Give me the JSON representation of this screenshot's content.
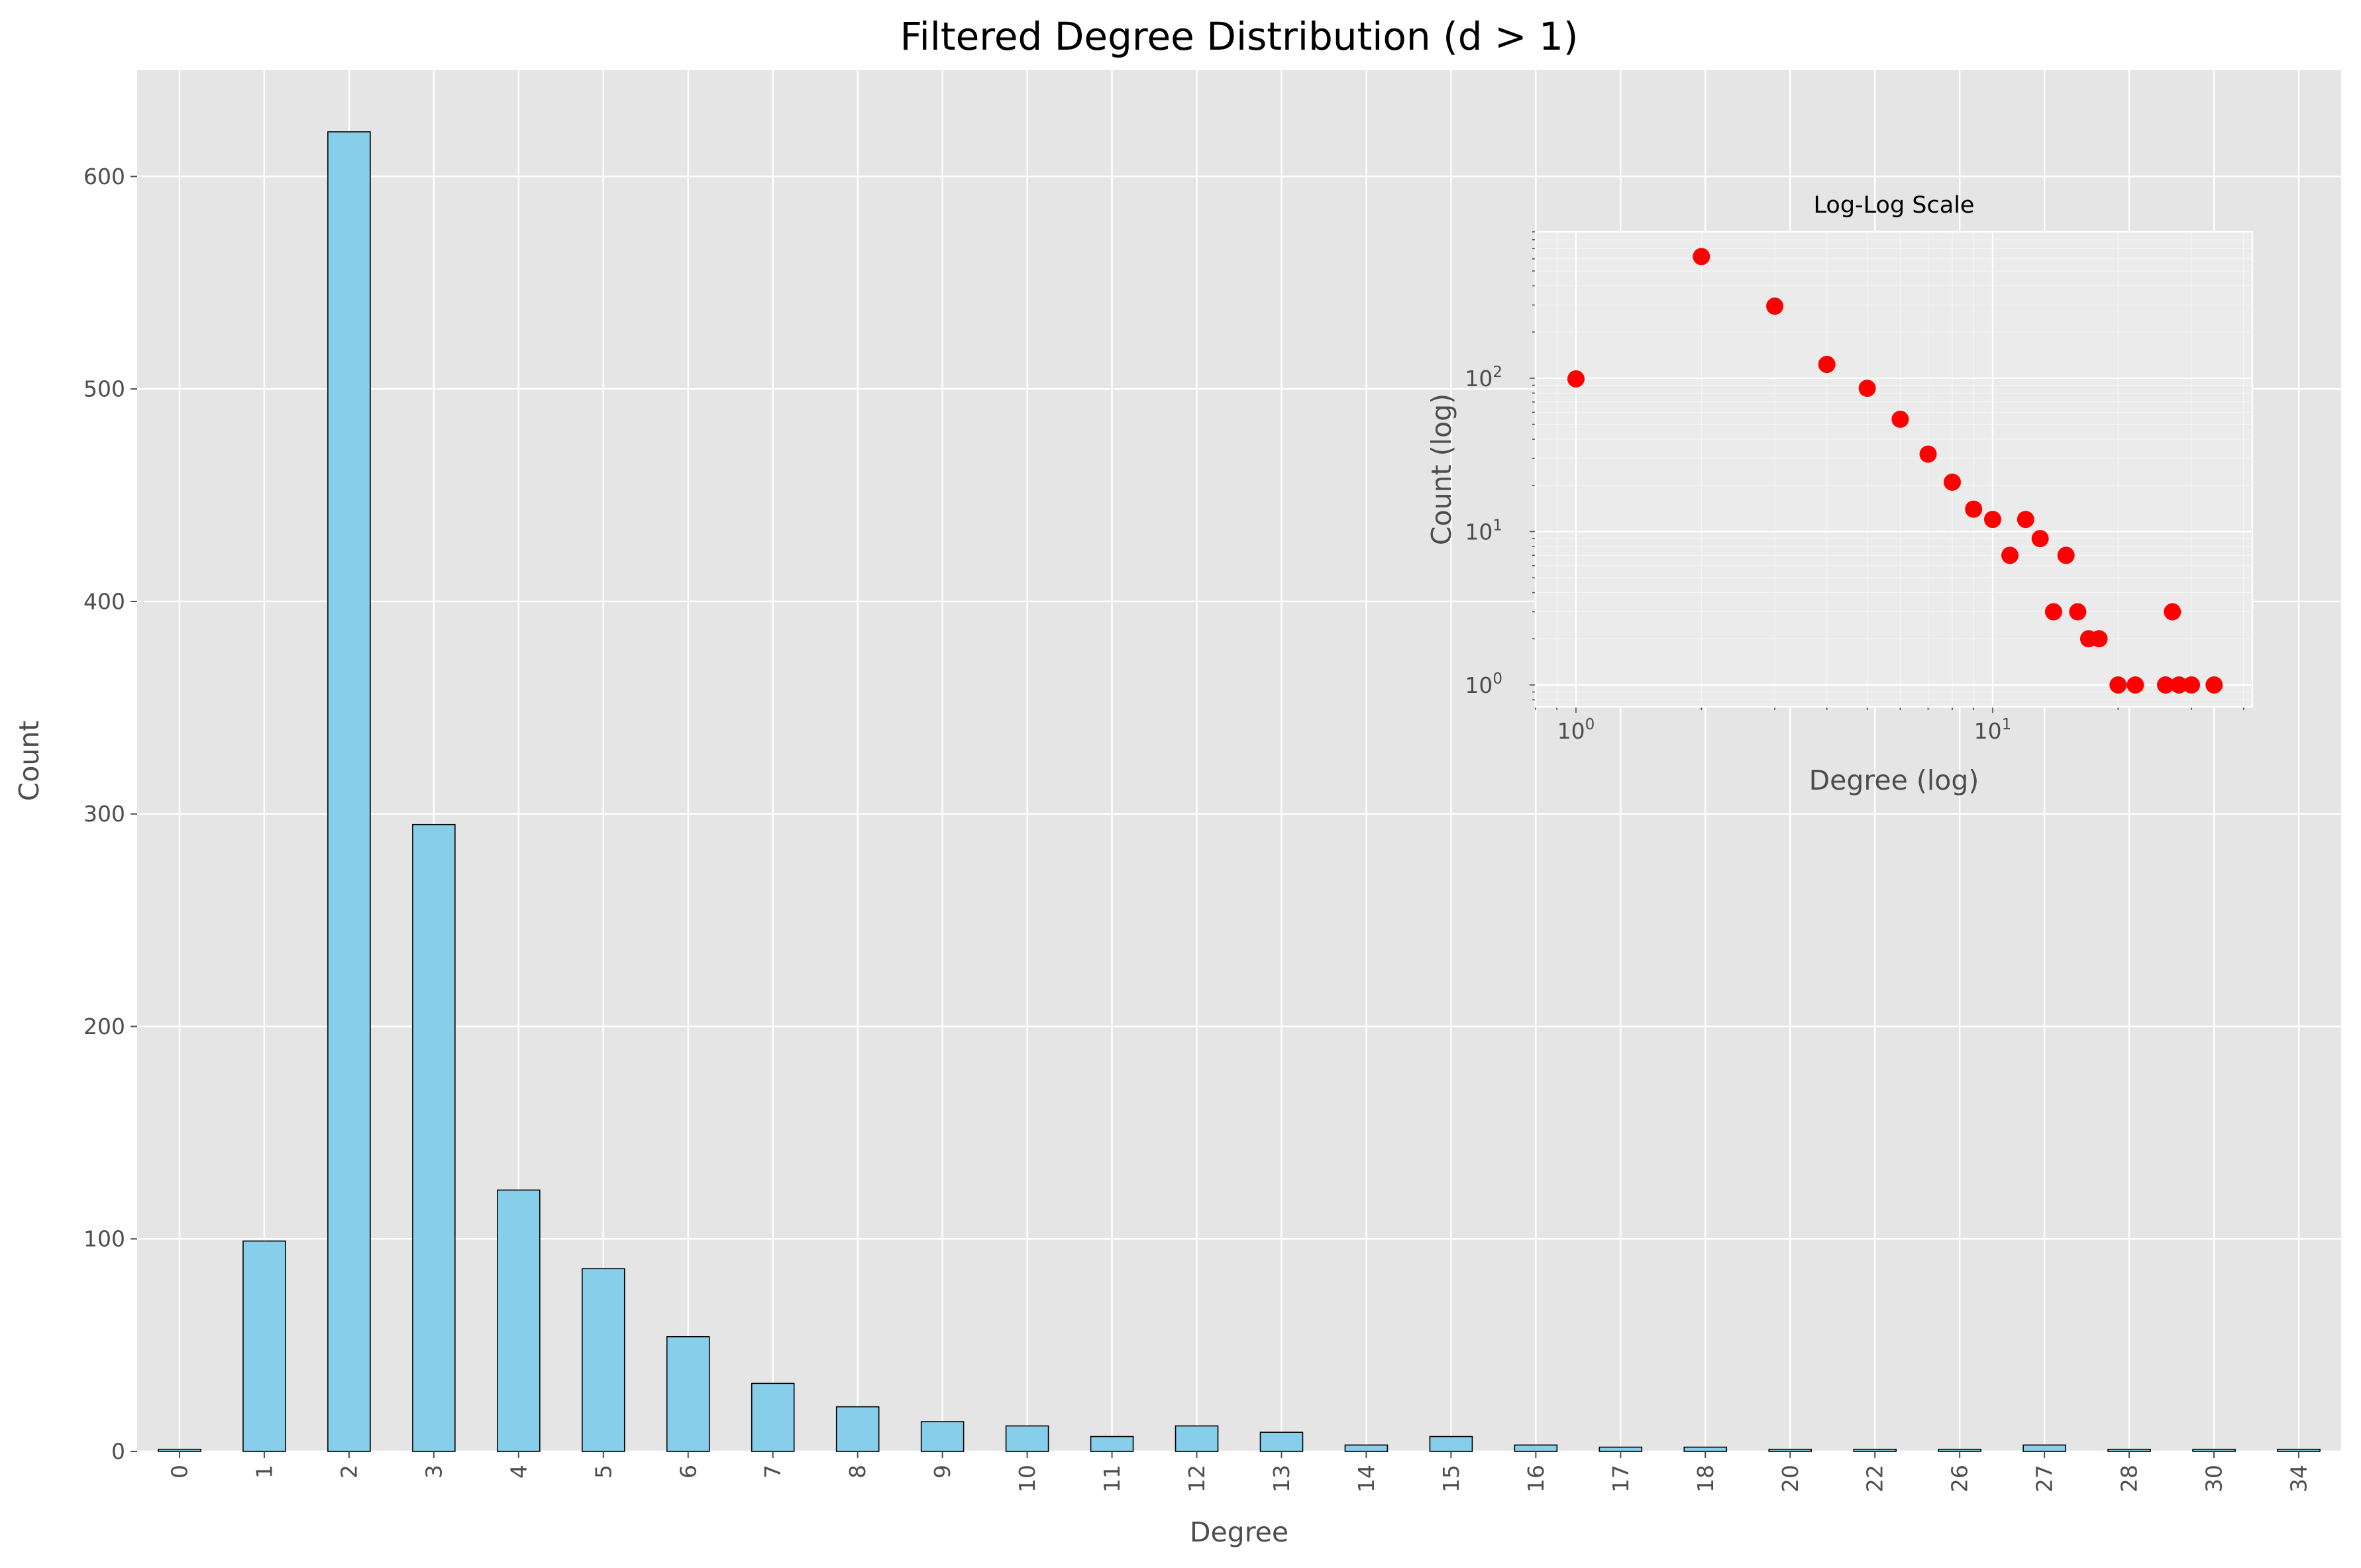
{
  "chart_data": [
    {
      "type": "bar",
      "title": "Filtered Degree Distribution (d > 1)",
      "xlabel": "Degree",
      "ylabel": "Count",
      "categories": [
        "0",
        "1",
        "2",
        "3",
        "4",
        "5",
        "6",
        "7",
        "8",
        "9",
        "10",
        "11",
        "12",
        "13",
        "14",
        "15",
        "16",
        "17",
        "18",
        "20",
        "22",
        "26",
        "27",
        "28",
        "30",
        "34"
      ],
      "values": [
        1,
        99,
        621,
        295,
        123,
        86,
        54,
        32,
        21,
        14,
        12,
        7,
        12,
        9,
        3,
        7,
        3,
        2,
        2,
        1,
        1,
        1,
        3,
        1,
        1,
        1
      ],
      "ylim": [
        0,
        650
      ],
      "yticks": [
        0,
        100,
        200,
        300,
        400,
        500,
        600
      ],
      "ytick_labels": [
        "0",
        "100",
        "200",
        "300",
        "400",
        "500",
        "600"
      ],
      "grid": true,
      "colors": {
        "bar": "#87ceeb",
        "edge": "#000000",
        "background": "#e5e5e5",
        "grid": "#ffffff"
      }
    },
    {
      "type": "scatter",
      "title": "Log-Log Scale",
      "xlabel": "Degree (log)",
      "ylabel": "Count (log)",
      "xscale": "log",
      "yscale": "log",
      "x": [
        1,
        2,
        3,
        4,
        5,
        6,
        7,
        8,
        9,
        10,
        11,
        12,
        13,
        14,
        15,
        16,
        17,
        18,
        20,
        22,
        26,
        27,
        28,
        30,
        34
      ],
      "y": [
        99,
        621,
        295,
        123,
        86,
        54,
        32,
        21,
        14,
        12,
        7,
        12,
        9,
        3,
        7,
        3,
        2,
        2,
        1,
        1,
        1,
        3,
        1,
        1,
        1
      ],
      "xlim": [
        0.8,
        42
      ],
      "ylim": [
        0.72,
        900
      ],
      "xticks": [
        {
          "value": 1,
          "base": "10",
          "exp": "0"
        },
        {
          "value": 10,
          "base": "10",
          "exp": "1"
        }
      ],
      "yticks": [
        {
          "value": 1,
          "base": "10",
          "exp": "0"
        },
        {
          "value": 10,
          "base": "10",
          "exp": "1"
        },
        {
          "value": 100,
          "base": "10",
          "exp": "2"
        }
      ],
      "grid": true,
      "colors": {
        "marker": "#ff0000",
        "background": "#ebebeb",
        "grid": "#ffffff"
      }
    }
  ]
}
